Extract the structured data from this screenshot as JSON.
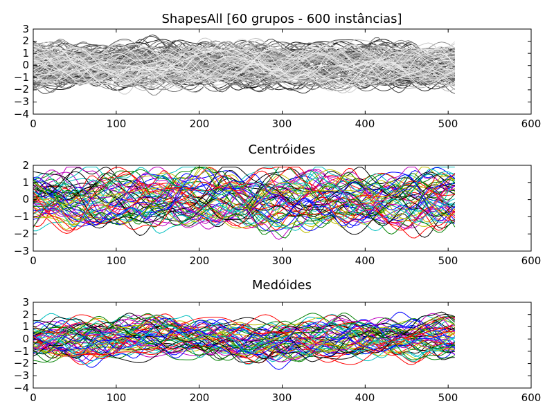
{
  "chart_data": [
    {
      "type": "line",
      "title": "ShapesAll [60 grupos - 600 instâncias]",
      "xlabel": "",
      "ylabel": "",
      "xlim": [
        0,
        600
      ],
      "ylim": [
        -4,
        3
      ],
      "x_ticks": [
        "0",
        "100",
        "200",
        "300",
        "400",
        "500",
        "600"
      ],
      "y_ticks": [
        "3",
        "2",
        "1",
        "0",
        "−1",
        "−2",
        "−3",
        "−4"
      ],
      "grid": false,
      "legend": "none",
      "series_style": "grayscale",
      "series_count": 600,
      "series_length": 512,
      "series_value_range": [
        -3.2,
        2.7
      ]
    },
    {
      "type": "line",
      "title": "Centróides",
      "xlabel": "",
      "ylabel": "",
      "xlim": [
        0,
        600
      ],
      "ylim": [
        -3,
        2
      ],
      "x_ticks": [
        "0",
        "100",
        "200",
        "300",
        "400",
        "500",
        "600"
      ],
      "y_ticks": [
        "2",
        "1",
        "0",
        "−1",
        "−2",
        "−3"
      ],
      "grid": false,
      "legend": "none",
      "series_style": "color-cycle",
      "series_colors": [
        "#0000ff",
        "#008000",
        "#ff0000",
        "#00bfbf",
        "#bf00bf",
        "#bfbf00",
        "#000000"
      ],
      "series_count": 60,
      "series_length": 512,
      "series_value_range": [
        -2.7,
        1.9
      ]
    },
    {
      "type": "line",
      "title": "Medóides",
      "xlabel": "",
      "ylabel": "",
      "xlim": [
        0,
        600
      ],
      "ylim": [
        -4,
        3
      ],
      "x_ticks": [
        "0",
        "100",
        "200",
        "300",
        "400",
        "500",
        "600"
      ],
      "y_ticks": [
        "3",
        "2",
        "1",
        "0",
        "−1",
        "−2",
        "−3",
        "−4"
      ],
      "grid": false,
      "legend": "none",
      "series_style": "color-cycle",
      "series_colors": [
        "#0000ff",
        "#008000",
        "#ff0000",
        "#00bfbf",
        "#bf00bf",
        "#bfbf00",
        "#000000"
      ],
      "series_count": 60,
      "series_length": 512,
      "series_value_range": [
        -3.0,
        2.7
      ]
    }
  ]
}
